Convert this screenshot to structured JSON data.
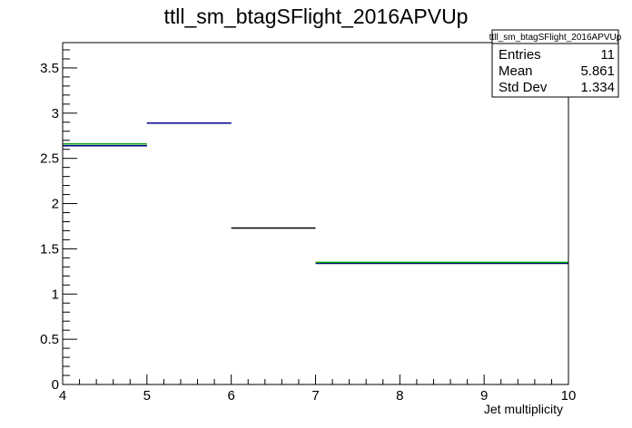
{
  "chart_data": {
    "type": "histogram-step",
    "title": "ttll_sm_btagSFlight_2016APVUp",
    "xlabel": "Jet multiplicity",
    "ylabel": "",
    "xlim": [
      4,
      10
    ],
    "ylim": [
      0,
      3.78
    ],
    "x_ticks": [
      4,
      5,
      6,
      7,
      8,
      9,
      10
    ],
    "y_ticks": [
      0,
      0.5,
      1,
      1.5,
      2,
      2.5,
      3,
      3.5
    ],
    "x_tick_labels": [
      "4",
      "5",
      "6",
      "7",
      "8",
      "9",
      "10"
    ],
    "y_tick_labels": [
      "0",
      "0.5",
      "1",
      "1.5",
      "2",
      "2.5",
      "3",
      "3.5"
    ],
    "series": [
      {
        "color": "#000000",
        "bins": [
          {
            "x_low": 4,
            "x_high": 5,
            "value": 2.64
          },
          {
            "x_low": 5,
            "x_high": 6,
            "value": 2.89
          },
          {
            "x_low": 6,
            "x_high": 7,
            "value": 1.73
          },
          {
            "x_low": 7,
            "x_high": 10,
            "value": 1.34
          }
        ]
      },
      {
        "color": "#00008b",
        "bins": [
          {
            "x_low": 4,
            "x_high": 5,
            "value": 2.64
          },
          {
            "x_low": 5,
            "x_high": 6,
            "value": 2.89
          },
          {
            "x_low": 7,
            "x_high": 10,
            "value": 1.34
          }
        ]
      },
      {
        "color": "#00a000",
        "bins": [
          {
            "x_low": 4,
            "x_high": 5,
            "value": 2.66
          },
          {
            "x_low": 7,
            "x_high": 10,
            "value": 1.35
          }
        ]
      }
    ],
    "stats_box": {
      "name": "ttll_sm_btagSFlight_2016APVUp",
      "rows": [
        {
          "label": "Entries",
          "value": "11"
        },
        {
          "label": "Mean",
          "value": "5.861"
        },
        {
          "label": "Std Dev",
          "value": "1.334"
        }
      ]
    }
  }
}
